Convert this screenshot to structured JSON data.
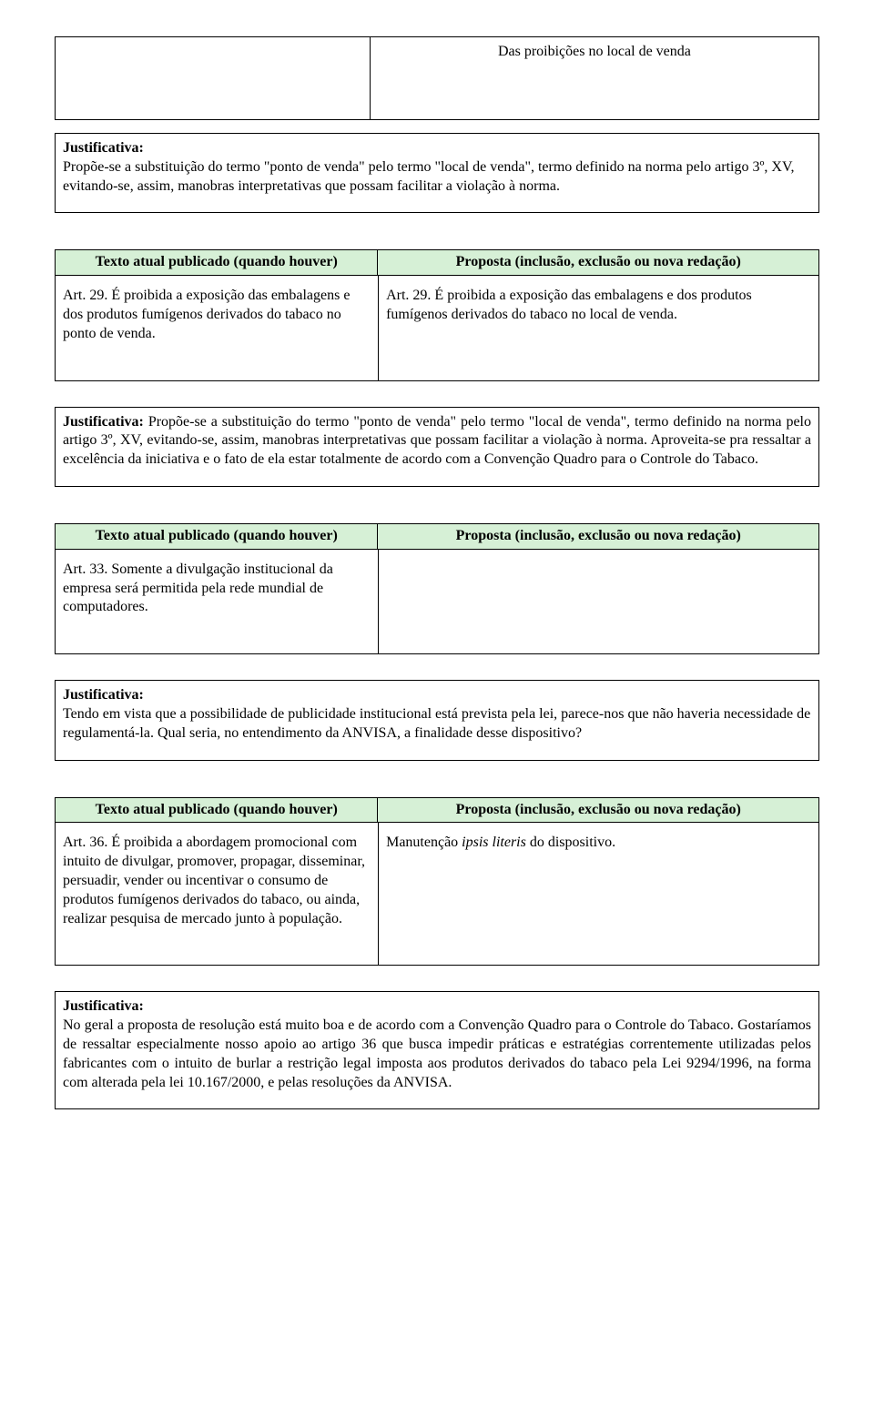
{
  "topTitle": "Das proibições no local de venda",
  "section1": {
    "justLabel": "Justificativa:",
    "justBody": "Propõe-se a substituição do termo \"ponto de venda\" pelo termo \"local de venda\", termo definido na norma pelo artigo 3º, XV, evitando-se, assim, manobras interpretativas que possam facilitar a violação à norma."
  },
  "headers": {
    "left": "Texto atual publicado (quando houver)",
    "right": "Proposta (inclusão, exclusão ou nova redação)"
  },
  "section2": {
    "left": "Art. 29. É proibida a exposição das embalagens e dos  produtos fumígenos derivados do tabaco no ponto de venda.",
    "right": "Art. 29. É proibida a exposição das embalagens e dos  produtos fumígenos derivados do tabaco no local de venda.",
    "justLabelInline": "Justificativa:",
    "justBody": " Propõe-se a substituição do termo \"ponto de venda\" pelo termo \"local de venda\", termo definido na norma pelo artigo 3º, XV, evitando-se, assim, manobras interpretativas que possam facilitar a violação à norma. Aproveita-se pra ressaltar a excelência da iniciativa e o fato de ela estar totalmente de acordo com a Convenção Quadro para o Controle do Tabaco."
  },
  "section3": {
    "left": "Art.  33.  Somente     a  divulgação   institucional  da   empresa    será   permitida  pela   rede  mundial    de computadores.",
    "right": "",
    "justLabel": "Justificativa:",
    "justBody": "Tendo em vista que a possibilidade de publicidade institucional está prevista pela lei, parece-nos que não haveria necessidade de regulamentá-la. Qual seria, no entendimento da ANVISA, a finalidade desse dispositivo?"
  },
  "section4": {
    "left": "Art. 36. É proibida a abordagem promocional com intuito de divulgar, promover, propagar, disseminar, persuadir, vender ou incentivar o consumo de produtos fumígenos derivados do tabaco, ou ainda, realizar pesquisa de mercado junto à população.",
    "rightPrefix": "Manutenção ",
    "rightItalic": "ipsis literis",
    "rightSuffix": "  do dispositivo.",
    "justLabel": "Justificativa:",
    "justBody": "No geral a proposta de resolução está muito boa e de acordo com a Convenção Quadro para o Controle do Tabaco. Gostaríamos de ressaltar especialmente nosso apoio ao artigo 36 que busca impedir práticas e estratégias correntemente utilizadas pelos fabricantes com o intuito de burlar a restrição legal imposta aos produtos derivados do tabaco pela Lei 9294/1996, na forma com alterada pela lei 10.167/2000, e pelas resoluções da ANVISA."
  }
}
